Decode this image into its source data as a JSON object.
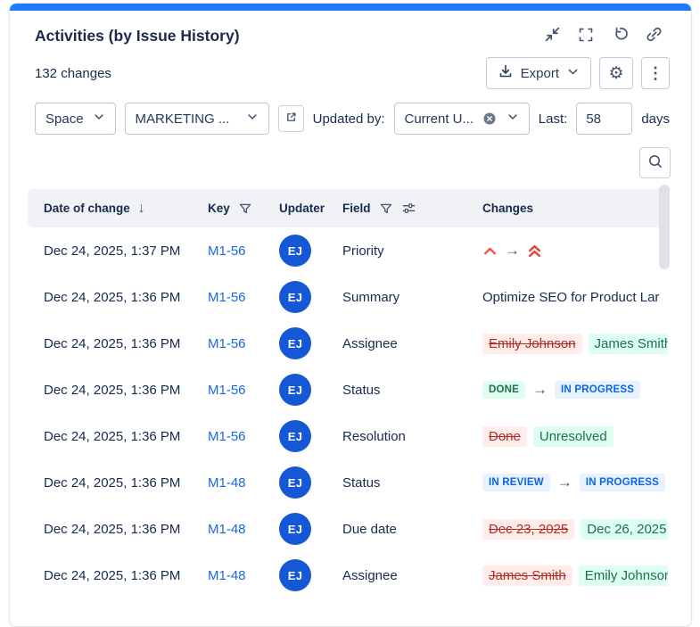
{
  "panel": {
    "title": "Activities (by Issue History)",
    "count_text": "132 changes"
  },
  "toolbar": {
    "export_label": "Export"
  },
  "filters": {
    "space": {
      "label": "Space"
    },
    "project": {
      "value": "MARKETING ..."
    },
    "updated_by": {
      "label": "Updated by:",
      "value": "Current U..."
    },
    "last": {
      "label": "Last:",
      "value": "58",
      "suffix": "days"
    }
  },
  "icons": {
    "gear": "⚙",
    "kebab": "⋮",
    "arrow_right": "→",
    "sort_desc": "↓"
  },
  "table": {
    "columns": {
      "date": "Date of change",
      "key": "Key",
      "updater": "Updater",
      "field": "Field",
      "changes": "Changes"
    },
    "rows": [
      {
        "date": "Dec 24, 2025, 1:37 PM",
        "key": "M1-56",
        "updater_initials": "EJ",
        "field": "Priority",
        "change": {
          "type": "priority",
          "old_icon": "priority-high-icon",
          "new_icon": "priority-highest-icon",
          "old_color": "#F15C4F",
          "new_color": "#E2483D"
        }
      },
      {
        "date": "Dec 24, 2025, 1:36 PM",
        "key": "M1-56",
        "updater_initials": "EJ",
        "field": "Summary",
        "change": {
          "type": "text",
          "text": "Optimize SEO for Product Lar"
        }
      },
      {
        "date": "Dec 24, 2025, 1:36 PM",
        "key": "M1-56",
        "updater_initials": "EJ",
        "field": "Assignee",
        "change": {
          "type": "value",
          "old": "Emily Johnson",
          "new": "James Smith"
        }
      },
      {
        "date": "Dec 24, 2025, 1:36 PM",
        "key": "M1-56",
        "updater_initials": "EJ",
        "field": "Status",
        "change": {
          "type": "status",
          "old": "DONE",
          "old_style": "green",
          "new": "IN PROGRESS",
          "new_style": "blue"
        }
      },
      {
        "date": "Dec 24, 2025, 1:36 PM",
        "key": "M1-56",
        "updater_initials": "EJ",
        "field": "Resolution",
        "change": {
          "type": "value",
          "old": "Done",
          "new": "Unresolved"
        }
      },
      {
        "date": "Dec 24, 2025, 1:36 PM",
        "key": "M1-48",
        "updater_initials": "EJ",
        "field": "Status",
        "change": {
          "type": "status",
          "old": "IN REVIEW",
          "old_style": "blue",
          "new": "IN PROGRESS",
          "new_style": "blue"
        }
      },
      {
        "date": "Dec 24, 2025, 1:36 PM",
        "key": "M1-48",
        "updater_initials": "EJ",
        "field": "Due date",
        "change": {
          "type": "value",
          "old": "Dec 23, 2025",
          "new": "Dec 26, 2025"
        }
      },
      {
        "date": "Dec 24, 2025, 1:36 PM",
        "key": "M1-48",
        "updater_initials": "EJ",
        "field": "Assignee",
        "change": {
          "type": "value",
          "old": "James Smith",
          "new": "Emily Johnson"
        }
      }
    ]
  },
  "colors": {
    "accent": "#1D7AFC",
    "link": "#1868DB",
    "avatar_bg": "#1558D6",
    "badge_green_text": "#216E4E",
    "badge_green_bg": "#DCFFF1",
    "badge_blue_text": "#0C66E4",
    "badge_blue_bg": "#E9F2FF",
    "removed_text": "#AE2E24",
    "removed_bg": "#FFECEB",
    "added_text": "#216E4E",
    "added_bg": "#DCFFF1"
  }
}
